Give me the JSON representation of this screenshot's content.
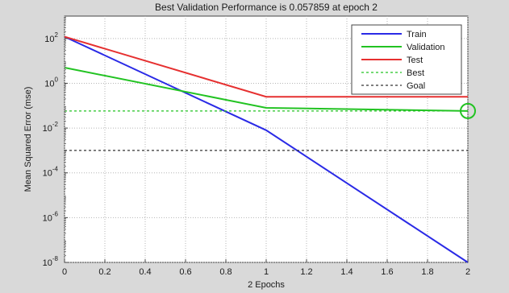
{
  "chart_data": {
    "type": "line",
    "title": "Best Validation Performance is 0.057859 at epoch 2",
    "xlabel": "2 Epochs",
    "ylabel": "Mean Squared Error  (mse)",
    "xlim": [
      0,
      2
    ],
    "ylim": [
      1e-08,
      1000
    ],
    "yscale": "log",
    "grid": "on",
    "legend_position": "top-right",
    "x_ticks": [
      "0",
      "0.2",
      "0.4",
      "0.6",
      "0.8",
      "1",
      "1.2",
      "1.4",
      "1.6",
      "1.8",
      "2"
    ],
    "x_tick_values": [
      0,
      0.2,
      0.4,
      0.6,
      0.8,
      1,
      1.2,
      1.4,
      1.6,
      1.8,
      2
    ],
    "y_ticks": [
      {
        "value": 100,
        "base": "10",
        "exp": "2"
      },
      {
        "value": 1,
        "base": "10",
        "exp": "0"
      },
      {
        "value": 0.01,
        "base": "10",
        "exp": "-2"
      },
      {
        "value": 0.0001,
        "base": "10",
        "exp": "-4"
      },
      {
        "value": 1e-06,
        "base": "10",
        "exp": "-6"
      },
      {
        "value": 1e-08,
        "base": "10",
        "exp": "-8"
      }
    ],
    "series": [
      {
        "name": "Train",
        "color": "#2a2ae6",
        "style": "solid",
        "x": [
          0,
          1,
          2
        ],
        "y": [
          120,
          0.008,
          1e-08
        ]
      },
      {
        "name": "Validation",
        "color": "#22c322",
        "style": "solid",
        "x": [
          0,
          1,
          2
        ],
        "y": [
          5,
          0.08,
          0.057859
        ]
      },
      {
        "name": "Test",
        "color": "#e63030",
        "style": "solid",
        "x": [
          0,
          1,
          2
        ],
        "y": [
          120,
          0.25,
          0.25
        ]
      },
      {
        "name": "Best",
        "color": "#22c322",
        "style": "dashed",
        "x": [
          0,
          2
        ],
        "y": [
          0.057859,
          0.057859
        ]
      },
      {
        "name": "Goal",
        "color": "#333333",
        "style": "dashed",
        "x": [
          0,
          2
        ],
        "y": [
          0.001,
          0.001
        ]
      }
    ],
    "best_marker": {
      "x": 2,
      "y": 0.057859,
      "color": "#22c322"
    }
  }
}
